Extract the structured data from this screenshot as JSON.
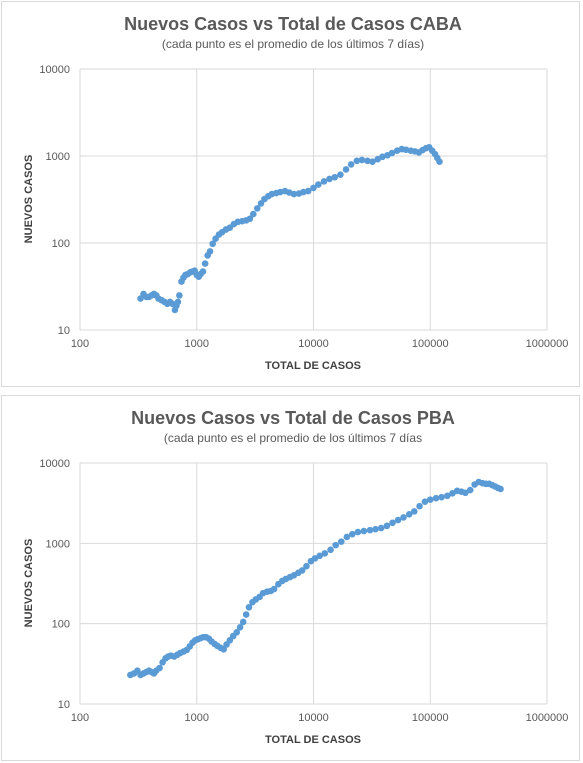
{
  "chart_data": [
    {
      "type": "scatter",
      "title": "Nuevos Casos vs Total de Casos CABA",
      "subtitle": "(cada punto es el promedio de los últimos 7 días)",
      "xlabel": "TOTAL DE CASOS",
      "ylabel": "NUEVOS CASOS",
      "x_scale": "log",
      "y_scale": "log",
      "xlim": [
        100,
        1000000
      ],
      "ylim": [
        10,
        10000
      ],
      "x_ticks": [
        "100",
        "1000",
        "10000",
        "100000",
        "1000000"
      ],
      "y_ticks": [
        "10",
        "100",
        "1000",
        "10000"
      ],
      "grid": true,
      "color": "#5b9bd5",
      "series": [
        {
          "x": [
            330,
            350,
            370,
            390,
            410,
            430,
            450,
            470,
            500,
            530,
            560,
            590,
            620,
            650,
            670,
            690,
            710,
            740,
            770,
            800,
            840,
            880,
            920,
            960,
            1000,
            1040,
            1080,
            1130,
            1180,
            1240,
            1300,
            1370,
            1450,
            1550,
            1650,
            1780,
            1920,
            2080,
            2250,
            2450,
            2650,
            2850,
            3050,
            3300,
            3550,
            3800,
            4100,
            4400,
            4800,
            5200,
            5700,
            6200,
            6800,
            7500,
            8200,
            9000,
            10000,
            11000,
            12300,
            13700,
            15200,
            17000,
            19000,
            21000,
            23500,
            26000,
            29000,
            32000,
            35500,
            39000,
            43000,
            47000,
            52000,
            57000,
            62000,
            68000,
            74000,
            80000,
            86000,
            92000,
            98000,
            104000,
            110000,
            115000,
            120000
          ],
          "y": [
            23,
            26,
            24,
            24,
            25,
            26,
            25,
            23,
            22,
            21,
            20,
            21,
            20,
            17,
            19,
            21,
            25,
            36,
            40,
            43,
            44,
            46,
            47,
            48,
            43,
            41,
            44,
            47,
            58,
            72,
            80,
            98,
            112,
            125,
            133,
            143,
            150,
            165,
            175,
            178,
            182,
            190,
            215,
            250,
            285,
            320,
            345,
            365,
            375,
            385,
            395,
            380,
            365,
            370,
            385,
            395,
            430,
            470,
            510,
            545,
            570,
            610,
            700,
            800,
            880,
            900,
            880,
            860,
            920,
            980,
            1020,
            1080,
            1150,
            1200,
            1180,
            1150,
            1130,
            1100,
            1170,
            1230,
            1260,
            1150,
            1050,
            950,
            860
          ]
        }
      ]
    },
    {
      "type": "scatter",
      "title": "Nuevos Casos vs Total de Casos PBA",
      "subtitle": "(cada punto es el promedio de los últimos 7 días",
      "xlabel": "TOTAL DE CASOS",
      "ylabel": "NUEVOS CASOS",
      "x_scale": "log",
      "y_scale": "log",
      "xlim": [
        100,
        1000000
      ],
      "ylim": [
        10,
        10000
      ],
      "x_ticks": [
        "100",
        "1000",
        "10000",
        "100000",
        "1000000"
      ],
      "y_ticks": [
        "10",
        "100",
        "1000",
        "10000"
      ],
      "grid": true,
      "color": "#5b9bd5",
      "series": [
        {
          "x": [
            270,
            290,
            310,
            330,
            350,
            370,
            390,
            410,
            430,
            450,
            480,
            510,
            540,
            570,
            600,
            640,
            680,
            720,
            770,
            820,
            870,
            920,
            970,
            1020,
            1080,
            1140,
            1200,
            1270,
            1340,
            1420,
            1500,
            1600,
            1700,
            1800,
            1920,
            2050,
            2200,
            2350,
            2500,
            2650,
            2800,
            3000,
            3200,
            3450,
            3700,
            4000,
            4300,
            4600,
            5000,
            5400,
            5800,
            6300,
            6800,
            7400,
            8000,
            8700,
            9500,
            10300,
            11300,
            12500,
            14000,
            15500,
            17300,
            19300,
            21500,
            24000,
            27000,
            30500,
            34000,
            38000,
            42500,
            47500,
            53000,
            59000,
            66000,
            73000,
            81000,
            90000,
            100000,
            112000,
            125000,
            140000,
            155000,
            170000,
            185000,
            200000,
            220000,
            240000,
            260000,
            280000,
            300000,
            320000,
            340000,
            360000,
            380000,
            400000
          ],
          "y": [
            23,
            24,
            26,
            23,
            24,
            25,
            26,
            25,
            24,
            26,
            28,
            33,
            37,
            39,
            40,
            39,
            41,
            43,
            45,
            47,
            52,
            58,
            62,
            64,
            66,
            68,
            68,
            65,
            60,
            56,
            53,
            50,
            48,
            55,
            62,
            70,
            78,
            90,
            105,
            130,
            160,
            185,
            200,
            215,
            240,
            250,
            255,
            270,
            310,
            340,
            360,
            380,
            400,
            430,
            460,
            520,
            600,
            650,
            700,
            750,
            830,
            950,
            1050,
            1200,
            1300,
            1380,
            1420,
            1460,
            1500,
            1550,
            1650,
            1800,
            1950,
            2100,
            2300,
            2500,
            2900,
            3300,
            3500,
            3650,
            3750,
            3900,
            4200,
            4500,
            4400,
            4250,
            4600,
            5400,
            5800,
            5600,
            5500,
            5500,
            5300,
            5100,
            4900,
            4750
          ]
        }
      ]
    }
  ]
}
